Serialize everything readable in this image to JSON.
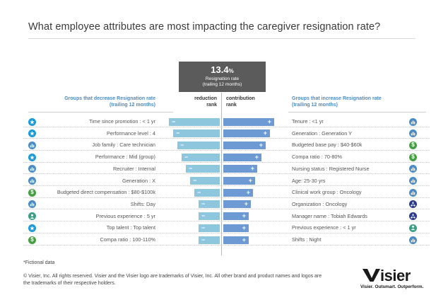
{
  "title": "What employee attributes are most impacting the caregiver resignation rate?",
  "kpi": {
    "value": "13.4",
    "unit": "%",
    "line1": "Resignation rate",
    "line2": "(trailing 12 months)"
  },
  "headers": {
    "left_line1": "Groups that decrease Resignation rate",
    "left_line2": "(trailing 12 months)",
    "reduction_line1": "reduction",
    "reduction_line2": "rank",
    "contribution_line1": "contribution",
    "contribution_line2": "rank",
    "right_line1": "Groups that increase Resignation rate",
    "right_line2": "(trailing 12 months)"
  },
  "chart_data": {
    "type": "bar",
    "title": "What employee attributes are most impacting the caregiver resignation rate?",
    "kpi": "13.4% Resignation rate (trailing 12 months)",
    "decrease_groups": [
      {
        "label": "Time since promotion : < 1 yr",
        "icon": "star-icon",
        "sign": "−",
        "rank_value": 12
      },
      {
        "label": "Performance level : 4",
        "icon": "star-icon",
        "sign": "−",
        "rank_value": 11
      },
      {
        "label": "Job family : Care technician",
        "icon": "bar-chart-icon",
        "sign": "−",
        "rank_value": 10
      },
      {
        "label": "Performance : Mid (group)",
        "icon": "star-icon",
        "sign": "−",
        "rank_value": 9
      },
      {
        "label": "Recruiter :  Internal",
        "icon": "bar-chart-icon",
        "sign": "−",
        "rank_value": 8
      },
      {
        "label": "Generation : X",
        "icon": "bar-chart-icon",
        "sign": "−",
        "rank_value": 7
      },
      {
        "label": "Budgeted direct compensation : $80-$100k",
        "icon": "dollar-icon",
        "sign": "−",
        "rank_value": 6
      },
      {
        "label": "Shifts: Day",
        "icon": "bar-chart-icon",
        "sign": "−",
        "rank_value": 5
      },
      {
        "label": "Previous experience : 5 yr",
        "icon": "person-icon",
        "sign": "−",
        "rank_value": 5
      },
      {
        "label": "Top talent : Top talent",
        "icon": "star-icon",
        "sign": "−",
        "rank_value": 5
      },
      {
        "label": "Compa ratio : 100-110%",
        "icon": "dollar-icon",
        "sign": "−",
        "rank_value": 5
      }
    ],
    "increase_groups": [
      {
        "label": "Tenure : <1 yr",
        "icon": "bar-chart-icon",
        "sign": "+",
        "rank_value": 12
      },
      {
        "label": "Generation : Generation Y",
        "icon": "bar-chart-icon",
        "sign": "+",
        "rank_value": 11
      },
      {
        "label": "Budgeted base pay : $40-$60k",
        "icon": "dollar-icon",
        "sign": "+",
        "rank_value": 10
      },
      {
        "label": "Compa ratio : 70-80%",
        "icon": "dollar-icon",
        "sign": "+",
        "rank_value": 9
      },
      {
        "label": "Nursing status : Registered Nurse",
        "icon": "bar-chart-icon",
        "sign": "+",
        "rank_value": 8
      },
      {
        "label": "Age: 25-30 yrs",
        "icon": "bar-chart-icon",
        "sign": "+",
        "rank_value": 7.5
      },
      {
        "label": "Clinical work group : Oncology",
        "icon": "bar-chart-icon",
        "sign": "+",
        "rank_value": 7
      },
      {
        "label": "Organization : Oncology",
        "icon": "org-icon",
        "sign": "+",
        "rank_value": 6.5
      },
      {
        "label": "Manager name : Tobiah Edwards",
        "icon": "org-icon",
        "sign": "+",
        "rank_value": 6
      },
      {
        "label": "Previous experience : < 1 yr",
        "icon": "person-icon",
        "sign": "+",
        "rank_value": 6
      },
      {
        "label": "Shifts : Night",
        "icon": "bar-chart-icon",
        "sign": "+",
        "rank_value": 6
      }
    ],
    "xlabel": "",
    "ylabel": ""
  },
  "colors": {
    "decrease_bar": "#8ec6dd",
    "increase_bar": "#6e9ad3",
    "blue_icon": "#4a8bc6",
    "star_icon": "#1e9bd7",
    "green_icon": "#45a041",
    "teal_icon": "#3a9f86",
    "navy_icon": "#2a3a8a"
  },
  "footer": {
    "note": "*Fictional data",
    "copyright": "© Visier, Inc. All rights reserved. Visier and the Visier logo are trademarks of Visier, Inc. All other brand and product names and logos are the trademarks of their respective holders."
  },
  "brand": {
    "logo": "visier",
    "tagline": "Visier. Outsmart. Outperform."
  }
}
